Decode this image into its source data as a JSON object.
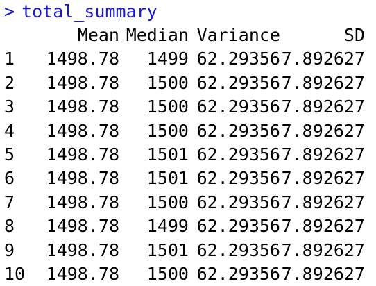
{
  "console": {
    "prompt_symbol": ">",
    "command": "total_summary",
    "prompt_color": "#1a1ad6"
  },
  "output": {
    "columns": [
      "",
      "Mean",
      "Median",
      "Variance",
      "SD"
    ],
    "rows": [
      {
        "index": "1",
        "mean": "1498.78",
        "median": "1499",
        "variance": "62.29356",
        "sd": "7.892627"
      },
      {
        "index": "2",
        "mean": "1498.78",
        "median": "1500",
        "variance": "62.29356",
        "sd": "7.892627"
      },
      {
        "index": "3",
        "mean": "1498.78",
        "median": "1500",
        "variance": "62.29356",
        "sd": "7.892627"
      },
      {
        "index": "4",
        "mean": "1498.78",
        "median": "1500",
        "variance": "62.29356",
        "sd": "7.892627"
      },
      {
        "index": "5",
        "mean": "1498.78",
        "median": "1501",
        "variance": "62.29356",
        "sd": "7.892627"
      },
      {
        "index": "6",
        "mean": "1498.78",
        "median": "1501",
        "variance": "62.29356",
        "sd": "7.892627"
      },
      {
        "index": "7",
        "mean": "1498.78",
        "median": "1500",
        "variance": "62.29356",
        "sd": "7.892627"
      },
      {
        "index": "8",
        "mean": "1498.78",
        "median": "1499",
        "variance": "62.29356",
        "sd": "7.892627"
      },
      {
        "index": "9",
        "mean": "1498.78",
        "median": "1501",
        "variance": "62.29356",
        "sd": "7.892627"
      },
      {
        "index": "10",
        "mean": "1498.78",
        "median": "1500",
        "variance": "62.29356",
        "sd": "7.892627"
      }
    ]
  }
}
